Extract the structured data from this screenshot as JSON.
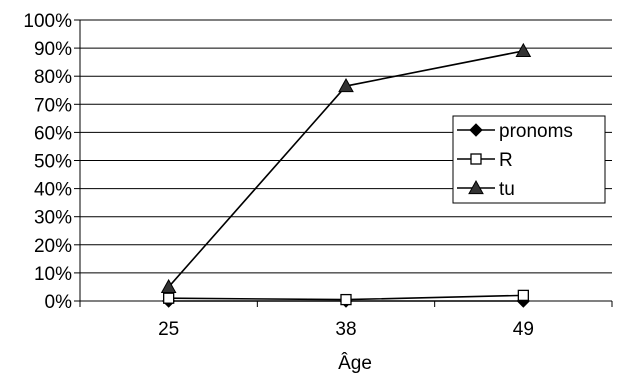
{
  "chart_data": {
    "type": "line",
    "title": "",
    "xlabel": "Âge",
    "ylabel": "",
    "categories": [
      "25",
      "38",
      "49"
    ],
    "ylim": [
      0,
      100
    ],
    "yticks": [
      "0%",
      "10%",
      "20%",
      "30%",
      "40%",
      "50%",
      "60%",
      "70%",
      "80%",
      "90%",
      "100%"
    ],
    "grid": "horizontal",
    "legend_position": "right",
    "series": [
      {
        "name": "pronoms",
        "values": [
          0,
          0,
          0
        ],
        "marker": "diamond",
        "color": "#000000"
      },
      {
        "name": "R",
        "values": [
          1,
          0.5,
          2
        ],
        "marker": "square-open",
        "color": "#000000"
      },
      {
        "name": "tu",
        "values": [
          5,
          76.5,
          89
        ],
        "marker": "triangle",
        "color": "#333333"
      }
    ]
  }
}
